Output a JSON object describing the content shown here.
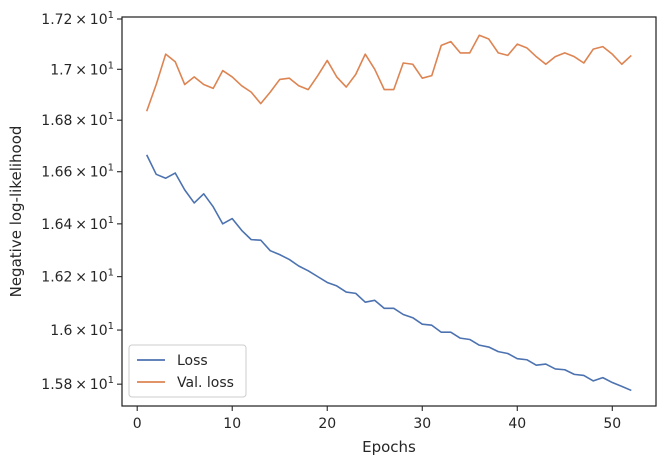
{
  "chart_data": {
    "type": "line",
    "xlabel": "Epochs",
    "ylabel": "Negative log-likelihood",
    "xlim": [
      -1.6,
      54.6
    ],
    "ylim": [
      15.72,
      17.208
    ],
    "yscale": "log",
    "grid": false,
    "legend_position": "lower-left",
    "x_ticks": [
      {
        "value": 0,
        "label": "0"
      },
      {
        "value": 10,
        "label": "10"
      },
      {
        "value": 20,
        "label": "20"
      },
      {
        "value": 30,
        "label": "30"
      },
      {
        "value": 40,
        "label": "40"
      },
      {
        "value": 50,
        "label": "50"
      }
    ],
    "y_ticks": [
      {
        "value": 15.8,
        "mantissa": "1.58",
        "base": "10",
        "exp": "1"
      },
      {
        "value": 16.0,
        "mantissa": "1.6",
        "base": "10",
        "exp": "1"
      },
      {
        "value": 16.2,
        "mantissa": "1.62",
        "base": "10",
        "exp": "1"
      },
      {
        "value": 16.4,
        "mantissa": "1.64",
        "base": "10",
        "exp": "1"
      },
      {
        "value": 16.6,
        "mantissa": "1.66",
        "base": "10",
        "exp": "1"
      },
      {
        "value": 16.8,
        "mantissa": "1.68",
        "base": "10",
        "exp": "1"
      },
      {
        "value": 17.0,
        "mantissa": "1.7",
        "base": "10",
        "exp": "1"
      },
      {
        "value": 17.2,
        "mantissa": "1.72",
        "base": "10",
        "exp": "1"
      }
    ],
    "x": [
      1,
      2,
      3,
      4,
      5,
      6,
      7,
      8,
      9,
      10,
      11,
      12,
      13,
      14,
      15,
      16,
      17,
      18,
      19,
      20,
      21,
      22,
      23,
      24,
      25,
      26,
      27,
      28,
      29,
      30,
      31,
      32,
      33,
      34,
      35,
      36,
      37,
      38,
      39,
      40,
      41,
      42,
      43,
      44,
      45,
      46,
      47,
      48,
      49,
      50,
      51,
      52
    ],
    "series": [
      {
        "name": "Loss",
        "color": "#4c72b0",
        "values": [
          16.665,
          16.59,
          16.575,
          16.595,
          16.53,
          16.48,
          16.515,
          16.465,
          16.4,
          16.42,
          16.375,
          16.34,
          16.338,
          16.298,
          16.283,
          16.265,
          16.24,
          16.222,
          16.2,
          16.178,
          16.165,
          16.142,
          16.137,
          16.104,
          16.111,
          16.081,
          16.081,
          16.058,
          16.046,
          16.022,
          16.018,
          15.992,
          15.992,
          15.97,
          15.965,
          15.944,
          15.937,
          15.92,
          15.913,
          15.894,
          15.89,
          15.87,
          15.874,
          15.856,
          15.853,
          15.836,
          15.832,
          15.812,
          15.824,
          15.806,
          15.792,
          15.777
        ]
      },
      {
        "name": "Val. loss",
        "color": "#dd8452",
        "values": [
          16.835,
          16.94,
          17.06,
          17.03,
          16.94,
          16.97,
          16.94,
          16.925,
          16.995,
          16.97,
          16.935,
          16.91,
          16.865,
          16.91,
          16.96,
          16.965,
          16.935,
          16.92,
          16.975,
          17.035,
          16.97,
          16.93,
          16.98,
          17.06,
          17.0,
          16.92,
          16.92,
          17.025,
          17.02,
          16.965,
          16.975,
          17.095,
          17.11,
          17.065,
          17.065,
          17.135,
          17.12,
          17.065,
          17.055,
          17.1,
          17.085,
          17.05,
          17.02,
          17.05,
          17.065,
          17.05,
          17.025,
          17.08,
          17.09,
          17.06,
          17.02,
          17.055
        ]
      }
    ],
    "frame_color": "#262626"
  }
}
